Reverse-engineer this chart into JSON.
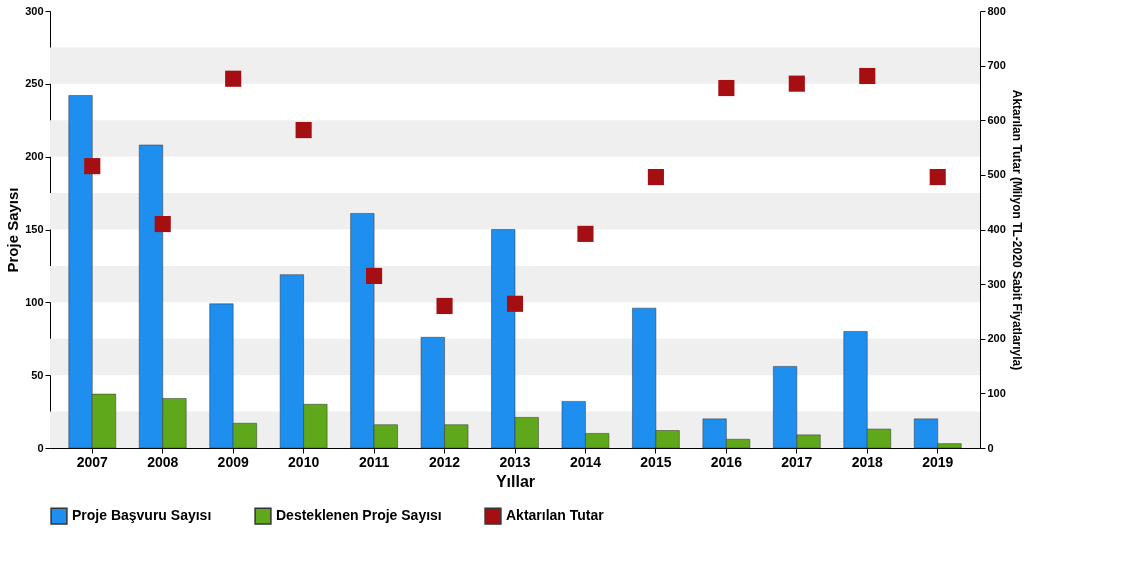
{
  "chart_data": {
    "type": "bar",
    "xlabel": "Yıllar",
    "ylabel": "Proje Sayısı",
    "y2label": "Aktarılan Tutar (Milyon TL-2020 Sabit Fiyatlarıyla)",
    "categories": [
      "2007",
      "2008",
      "2009",
      "2010",
      "2011",
      "2012",
      "2013",
      "2014",
      "2015",
      "2016",
      "2017",
      "2018",
      "2019"
    ],
    "series": [
      {
        "name": "Proje Başvuru Sayısı",
        "color": "#1e8fef",
        "values": [
          242,
          208,
          99,
          119,
          161,
          76,
          150,
          32,
          96,
          20,
          56,
          80,
          20
        ]
      },
      {
        "name": "Desteklenen Proje Sayısı",
        "color": "#5fa81c",
        "values": [
          37,
          34,
          17,
          30,
          16,
          16,
          21,
          10,
          12,
          6,
          9,
          13,
          3
        ]
      },
      {
        "name": "Aktarılan Tutar",
        "color": "#a50f12",
        "type": "scatter",
        "axis": "y2",
        "values": [
          516,
          410,
          676,
          582,
          315,
          260,
          264,
          392,
          496,
          659,
          667,
          681,
          496
        ]
      }
    ],
    "ylim": [
      0,
      300
    ],
    "yticks": [
      0,
      50,
      100,
      150,
      200,
      250,
      300
    ],
    "y2lim": [
      0,
      800
    ],
    "y2ticks": [
      0,
      100,
      200,
      300,
      400,
      500,
      600,
      700,
      800
    ],
    "bands": [
      {
        "axis": "y",
        "from": 0,
        "to": 25,
        "color": "#efefef"
      },
      {
        "axis": "y",
        "from": 50,
        "to": 75,
        "color": "#efefef"
      },
      {
        "axis": "y",
        "from": 100,
        "to": 125,
        "color": "#efefef"
      },
      {
        "axis": "y",
        "from": 150,
        "to": 175,
        "color": "#efefef"
      },
      {
        "axis": "y",
        "from": 200,
        "to": 225,
        "color": "#efefef"
      },
      {
        "axis": "y",
        "from": 250,
        "to": 275,
        "color": "#efefef"
      }
    ],
    "marker": "square",
    "grid": false,
    "legend": "bottom"
  }
}
